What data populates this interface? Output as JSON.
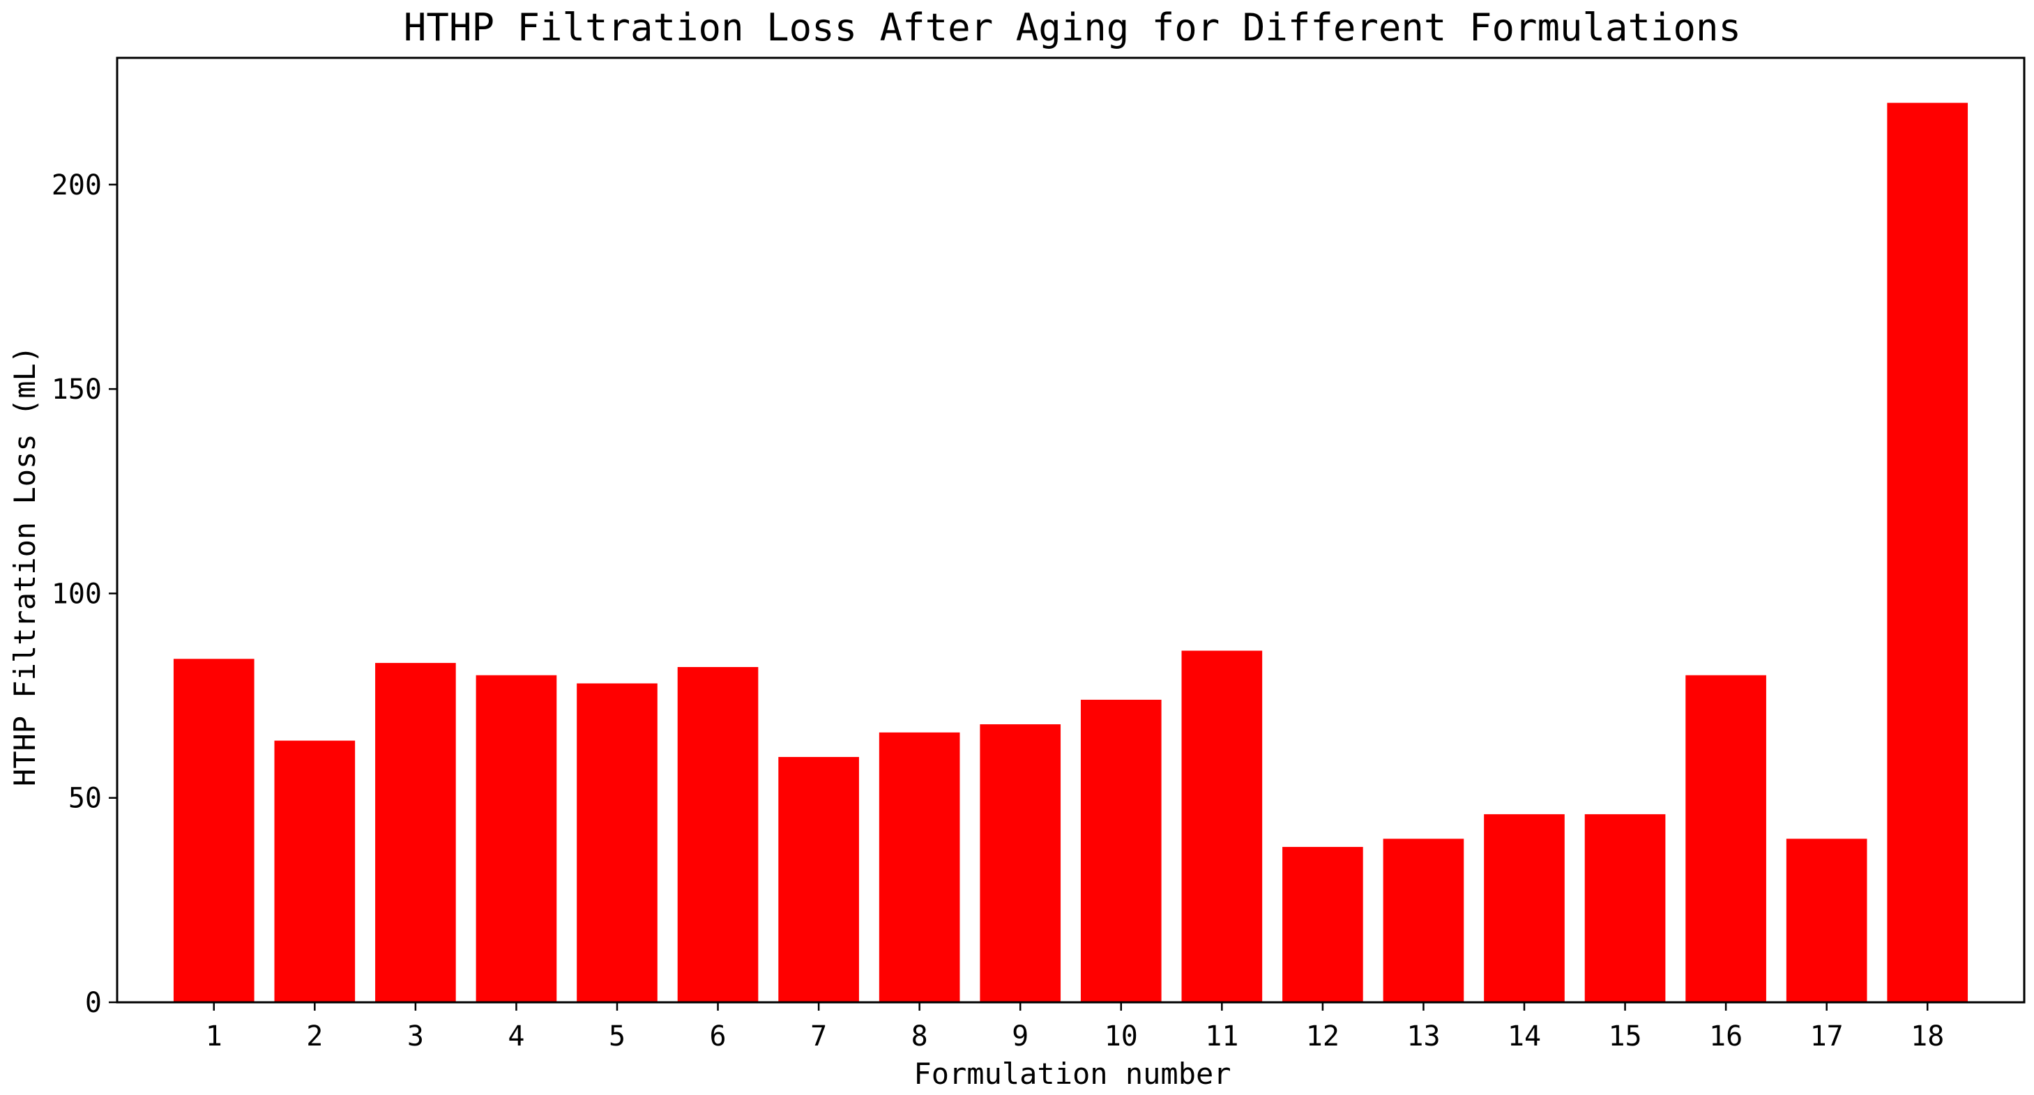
{
  "chart_data": {
    "type": "bar",
    "title": "HTHP Filtration Loss After Aging for Different Formulations",
    "xlabel": "Formulation number",
    "ylabel": "HTHP Filtration Loss (mL)",
    "categories": [
      "1",
      "2",
      "3",
      "4",
      "5",
      "6",
      "7",
      "8",
      "9",
      "10",
      "11",
      "12",
      "13",
      "14",
      "15",
      "16",
      "17",
      "18"
    ],
    "values": [
      84,
      64,
      83,
      80,
      78,
      82,
      60,
      66,
      68,
      74,
      86,
      38,
      40,
      46,
      46,
      80,
      40,
      220
    ],
    "ylim": [
      0,
      231
    ],
    "yticks": [
      0,
      50,
      100,
      150,
      200
    ],
    "bar_color": "#ff0000",
    "grid": false,
    "legend": "none"
  }
}
